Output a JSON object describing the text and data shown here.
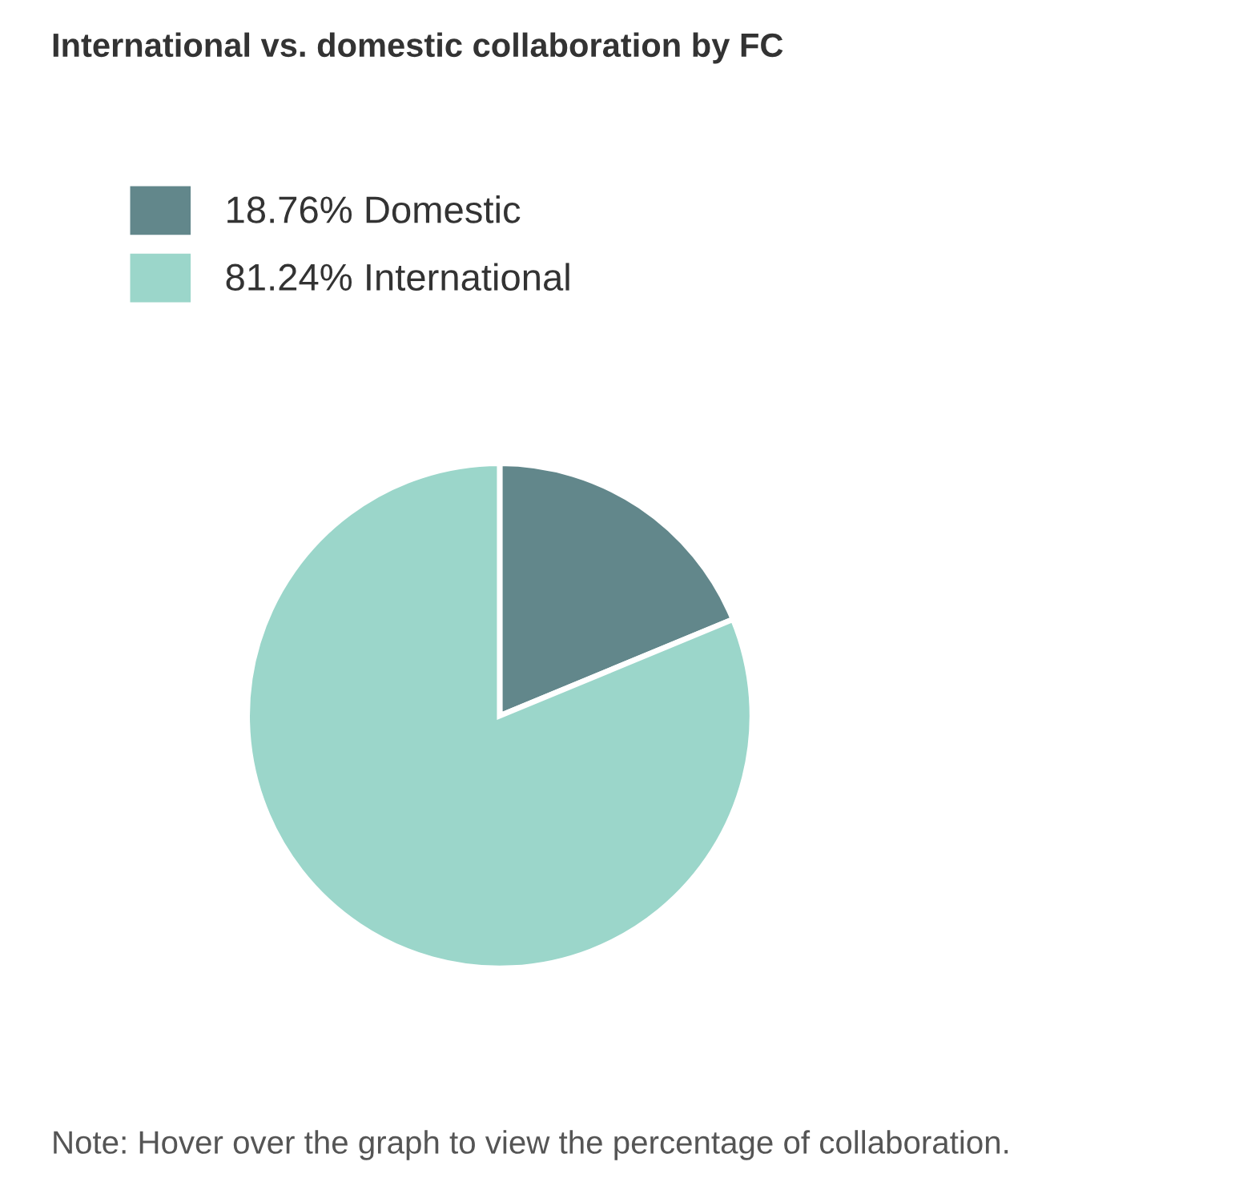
{
  "chart_data": {
    "type": "pie",
    "title": "International vs. domestic collaboration by FC",
    "categories": [
      "18.76% Domestic",
      "81.24% International"
    ],
    "values": [
      18.76,
      81.24
    ],
    "colors": [
      "#62878b",
      "#9bd6ca"
    ],
    "legend": "top left",
    "annotations": [
      "Note: Hover over the graph to view the percentage of collaboration."
    ]
  }
}
